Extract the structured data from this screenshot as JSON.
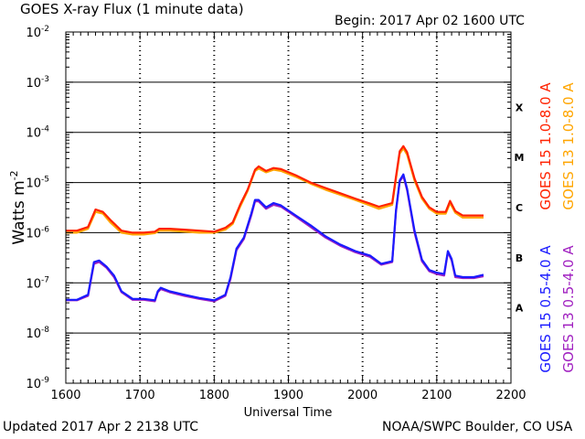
{
  "header": {
    "title": "GOES X-ray Flux (1 minute data)",
    "begin": "Begin: 2017 Apr 02 1600 UTC"
  },
  "footer": {
    "updated": "Updated 2017 Apr  2 2138 UTC",
    "source": "NOAA/SWPC Boulder, CO USA"
  },
  "colors": {
    "goes15_long": "#ff2200",
    "goes13_long": "#ffa500",
    "goes15_short": "#1a1aff",
    "goes13_short": "#a020c0",
    "grid": "#000000"
  },
  "chart_data": {
    "type": "line",
    "title": "GOES X-ray Flux (1 minute data)",
    "xlabel": "Universal Time",
    "ylabel": "Watts m-2",
    "ylabel_main": "Watts m",
    "ylabel_sup": "-2",
    "x_scale": "linear",
    "y_scale": "log",
    "xlim": [
      1600,
      2200
    ],
    "ylim_exponent": [
      -9,
      -2
    ],
    "x_ticks": [
      "1600",
      "1700",
      "1800",
      "1900",
      "2000",
      "2100",
      "2200"
    ],
    "x_tick_values": [
      1600,
      1700,
      1800,
      1900,
      2000,
      2100,
      2200
    ],
    "y_ticks": [
      {
        "exp": -2,
        "base": "10",
        "sup": "-2"
      },
      {
        "exp": -3,
        "base": "10",
        "sup": "-3"
      },
      {
        "exp": -4,
        "base": "10",
        "sup": "-4"
      },
      {
        "exp": -5,
        "base": "10",
        "sup": "-5"
      },
      {
        "exp": -6,
        "base": "10",
        "sup": "-6"
      },
      {
        "exp": -7,
        "base": "10",
        "sup": "-7"
      },
      {
        "exp": -8,
        "base": "10",
        "sup": "-8"
      },
      {
        "exp": -9,
        "base": "10",
        "sup": "-9"
      }
    ],
    "flare_classes": [
      {
        "label": "X",
        "exp": -3.5
      },
      {
        "label": "M",
        "exp": -4.5
      },
      {
        "label": "C",
        "exp": -5.5
      },
      {
        "label": "B",
        "exp": -6.5
      },
      {
        "label": "A",
        "exp": -7.5
      }
    ],
    "grid_exponents": [
      -3,
      -4,
      -5,
      -6,
      -7,
      -8
    ],
    "dashed_grid_times": [
      1700,
      1800,
      1900,
      2000,
      2100
    ],
    "legend": [
      {
        "label": "GOES 15 1.0-8.0 A",
        "color": "#ff2200"
      },
      {
        "label": "GOES 13 1.0-8.0 A",
        "color": "#ffa500"
      },
      {
        "label": "GOES 15 0.5-4.0 A",
        "color": "#1a1aff"
      },
      {
        "label": "GOES 13 0.5-4.0 A",
        "color": "#a020c0"
      }
    ],
    "series": [
      {
        "name": "GOES 13 1.0-8.0 A",
        "color": "#ffa500",
        "x": [
          1600,
          1615,
          1630,
          1640,
          1650,
          1660,
          1675,
          1690,
          1705,
          1720,
          1726,
          1740,
          1760,
          1780,
          1800,
          1815,
          1825,
          1835,
          1845,
          1855,
          1860,
          1870,
          1880,
          1890,
          1910,
          1930,
          1950,
          1970,
          1990,
          2010,
          2022,
          2040,
          2045,
          2050,
          2055,
          2060,
          2070,
          2080,
          2090,
          2100,
          2112,
          2118,
          2125,
          2135,
          2150,
          2163
        ],
        "y": [
          1e-06,
          1e-06,
          1.2e-06,
          2.6e-06,
          2.4e-06,
          1.6e-06,
          1e-06,
          9.2e-07,
          9.2e-07,
          9.8e-07,
          1.1e-06,
          1.1e-06,
          1.05e-06,
          1e-06,
          1e-06,
          1.15e-06,
          1.5e-06,
          3.3e-06,
          6.8e-06,
          1.7e-05,
          1.9e-05,
          1.6e-05,
          1.8e-05,
          1.7e-05,
          1.3e-05,
          9.5e-06,
          7.2e-06,
          5.7e-06,
          4.5e-06,
          3.5e-06,
          3e-06,
          3.6e-06,
          1.2e-05,
          3.8e-05,
          4.8e-05,
          3.6e-05,
          1.1e-05,
          4.8e-06,
          3e-06,
          2.4e-06,
          2.4e-06,
          3.9e-06,
          2.5e-06,
          2e-06,
          2e-06,
          2e-06
        ]
      },
      {
        "name": "GOES 15 1.0-8.0 A",
        "color": "#ff2200",
        "x": [
          1600,
          1615,
          1630,
          1640,
          1650,
          1660,
          1675,
          1690,
          1705,
          1720,
          1726,
          1740,
          1760,
          1780,
          1800,
          1815,
          1825,
          1835,
          1845,
          1855,
          1860,
          1870,
          1880,
          1890,
          1910,
          1930,
          1950,
          1970,
          1990,
          2010,
          2022,
          2040,
          2045,
          2050,
          2055,
          2060,
          2070,
          2080,
          2090,
          2100,
          2112,
          2118,
          2125,
          2135,
          2150,
          2163
        ],
        "y": [
          1.1e-06,
          1.1e-06,
          1.3e-06,
          2.9e-06,
          2.6e-06,
          1.8e-06,
          1.1e-06,
          1e-06,
          1e-06,
          1.05e-06,
          1.2e-06,
          1.2e-06,
          1.15e-06,
          1.1e-06,
          1.05e-06,
          1.25e-06,
          1.6e-06,
          3.6e-06,
          7.2e-06,
          1.8e-05,
          2.1e-05,
          1.7e-05,
          1.95e-05,
          1.85e-05,
          1.4e-05,
          1e-05,
          7.8e-06,
          6.1e-06,
          4.8e-06,
          3.8e-06,
          3.3e-06,
          3.9e-06,
          1.3e-05,
          4.2e-05,
          5.3e-05,
          4e-05,
          1.2e-05,
          5.2e-06,
          3.2e-06,
          2.6e-06,
          2.6e-06,
          4.3e-06,
          2.7e-06,
          2.2e-06,
          2.2e-06,
          2.2e-06
        ]
      },
      {
        "name": "GOES 13 0.5-4.0 A",
        "color": "#a020c0",
        "x": [
          1600,
          1615,
          1630,
          1638,
          1645,
          1655,
          1665,
          1675,
          1690,
          1705,
          1720,
          1724,
          1728,
          1740,
          1760,
          1780,
          1800,
          1815,
          1822,
          1830,
          1840,
          1850,
          1855,
          1860,
          1870,
          1880,
          1890,
          1910,
          1930,
          1950,
          1970,
          1990,
          2010,
          2025,
          2040,
          2045,
          2050,
          2055,
          2060,
          2070,
          2080,
          2090,
          2100,
          2110,
          2115,
          2120,
          2125,
          2135,
          2150,
          2163
        ],
        "y": [
          4.5e-08,
          4.5e-08,
          5.5e-08,
          2.4e-07,
          2.6e-07,
          2e-07,
          1.3e-07,
          6.5e-08,
          4.6e-08,
          4.6e-08,
          4.3e-08,
          6.5e-08,
          7.5e-08,
          6.5e-08,
          5.5e-08,
          4.8e-08,
          4.3e-08,
          5.5e-08,
          1.2e-07,
          4.5e-07,
          7.5e-07,
          2.2e-06,
          4.2e-06,
          4.2e-06,
          3e-06,
          3.6e-06,
          3.3e-06,
          2.1e-06,
          1.3e-06,
          8e-07,
          5.5e-07,
          4.1e-07,
          3.3e-07,
          2.3e-07,
          2.6e-07,
          2.6e-06,
          1.05e-05,
          1.35e-05,
          7e-06,
          1e-06,
          2.7e-07,
          1.7e-07,
          1.5e-07,
          1.4e-07,
          4.1e-07,
          2.8e-07,
          1.3e-07,
          1.25e-07,
          1.25e-07,
          1.35e-07
        ]
      },
      {
        "name": "GOES 15 0.5-4.0 A",
        "color": "#1a1aff",
        "x": [
          1600,
          1615,
          1630,
          1638,
          1645,
          1655,
          1665,
          1675,
          1690,
          1705,
          1720,
          1724,
          1728,
          1740,
          1760,
          1780,
          1800,
          1815,
          1822,
          1830,
          1840,
          1850,
          1855,
          1860,
          1870,
          1880,
          1890,
          1910,
          1930,
          1950,
          1970,
          1990,
          2010,
          2025,
          2040,
          2045,
          2050,
          2055,
          2060,
          2070,
          2080,
          2090,
          2100,
          2110,
          2115,
          2120,
          2125,
          2135,
          2150,
          2163
        ],
        "y": [
          4.6e-08,
          4.6e-08,
          5.8e-08,
          2.6e-07,
          2.8e-07,
          2.1e-07,
          1.4e-07,
          6.8e-08,
          4.8e-08,
          4.8e-08,
          4.5e-08,
          6.8e-08,
          8e-08,
          6.8e-08,
          5.8e-08,
          5e-08,
          4.5e-08,
          5.8e-08,
          1.3e-07,
          4.8e-07,
          8e-07,
          2.4e-06,
          4.5e-06,
          4.5e-06,
          3.2e-06,
          3.9e-06,
          3.5e-06,
          2.2e-06,
          1.4e-06,
          8.5e-07,
          5.8e-07,
          4.3e-07,
          3.5e-07,
          2.4e-07,
          2.7e-07,
          2.8e-06,
          1.1e-05,
          1.45e-05,
          7.5e-06,
          1.1e-06,
          2.9e-07,
          1.8e-07,
          1.6e-07,
          1.5e-07,
          4.3e-07,
          3e-07,
          1.4e-07,
          1.3e-07,
          1.3e-07,
          1.45e-07
        ]
      }
    ]
  }
}
